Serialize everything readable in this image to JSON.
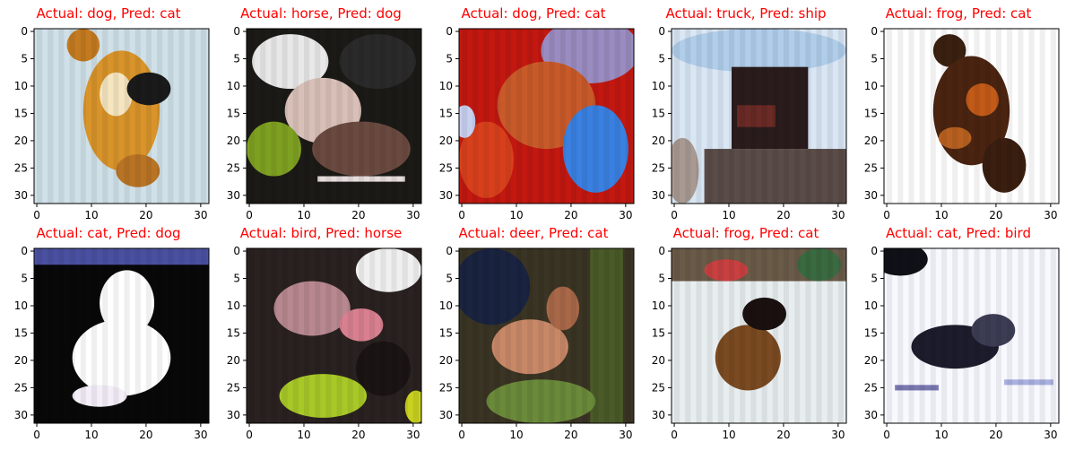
{
  "figure": {
    "panels": [
      {
        "title": "Actual: dog, Pred: cat",
        "bg": "#cfe0e8",
        "blobs": [
          {
            "shape": "ellipse",
            "cx": 16,
            "cy": 15,
            "rx": 7,
            "ry": 11,
            "color": "#d8942a"
          },
          {
            "shape": "ellipse",
            "cx": 15,
            "cy": 12,
            "rx": 3,
            "ry": 4,
            "color": "#f6e6c0"
          },
          {
            "shape": "ellipse",
            "cx": 9,
            "cy": 3,
            "rx": 3,
            "ry": 3,
            "color": "#c47a20"
          },
          {
            "shape": "ellipse",
            "cx": 21,
            "cy": 11,
            "rx": 4,
            "ry": 3,
            "color": "#1a1a1a"
          },
          {
            "shape": "ellipse",
            "cx": 19,
            "cy": 26,
            "rx": 4,
            "ry": 3,
            "color": "#b87424"
          }
        ]
      },
      {
        "title": "Actual: horse, Pred: dog",
        "bg": "#1c1a16",
        "blobs": [
          {
            "shape": "ellipse",
            "cx": 8,
            "cy": 6,
            "rx": 7,
            "ry": 5,
            "color": "#e8e8e8"
          },
          {
            "shape": "ellipse",
            "cx": 24,
            "cy": 6,
            "rx": 7,
            "ry": 5,
            "color": "#2a2a2a"
          },
          {
            "shape": "ellipse",
            "cx": 14,
            "cy": 15,
            "rx": 7,
            "ry": 6,
            "color": "#d8c0b8"
          },
          {
            "shape": "ellipse",
            "cx": 5,
            "cy": 22,
            "rx": 5,
            "ry": 5,
            "color": "#7ea022"
          },
          {
            "shape": "ellipse",
            "cx": 21,
            "cy": 22,
            "rx": 9,
            "ry": 5,
            "color": "#6a4a40"
          },
          {
            "shape": "rect",
            "x": 13,
            "y": 27,
            "w": 16,
            "h": 1,
            "color": "#e6dcdc"
          }
        ]
      },
      {
        "title": "Actual: dog, Pred: cat",
        "bg": "#c21810",
        "blobs": [
          {
            "shape": "ellipse",
            "cx": 24,
            "cy": 4,
            "rx": 9,
            "ry": 6,
            "color": "#9a8cc0"
          },
          {
            "shape": "ellipse",
            "cx": 16,
            "cy": 14,
            "rx": 9,
            "ry": 8,
            "color": "#c85a2a"
          },
          {
            "shape": "ellipse",
            "cx": 25,
            "cy": 22,
            "rx": 6,
            "ry": 8,
            "color": "#3a80e0"
          },
          {
            "shape": "ellipse",
            "cx": 5,
            "cy": 24,
            "rx": 5,
            "ry": 7,
            "color": "#d8401c"
          },
          {
            "shape": "ellipse",
            "cx": 1,
            "cy": 17,
            "rx": 2,
            "ry": 3,
            "color": "#c8d0f0"
          }
        ]
      },
      {
        "title": "Actual: truck, Pred: ship",
        "bg": "#d9e6f4",
        "blobs": [
          {
            "shape": "ellipse",
            "cx": 16,
            "cy": 4,
            "rx": 16,
            "ry": 4,
            "color": "#b0cdea"
          },
          {
            "shape": "rect",
            "x": 11,
            "y": 7,
            "w": 14,
            "h": 15,
            "color": "#2a1c1c"
          },
          {
            "shape": "rect",
            "x": 12,
            "y": 14,
            "w": 7,
            "h": 4,
            "color": "#6a2a26"
          },
          {
            "shape": "rect",
            "x": 6,
            "y": 22,
            "w": 26,
            "h": 10,
            "color": "#5a4c48"
          },
          {
            "shape": "ellipse",
            "cx": 2,
            "cy": 26,
            "rx": 3,
            "ry": 6,
            "color": "#a89a92"
          }
        ]
      },
      {
        "title": "Actual: frog, Pred: cat",
        "bg": "#ffffff",
        "blobs": [
          {
            "shape": "ellipse",
            "cx": 12,
            "cy": 4,
            "rx": 3,
            "ry": 3,
            "color": "#3a2010"
          },
          {
            "shape": "ellipse",
            "cx": 16,
            "cy": 15,
            "rx": 7,
            "ry": 10,
            "color": "#4a2410"
          },
          {
            "shape": "ellipse",
            "cx": 18,
            "cy": 13,
            "rx": 3,
            "ry": 3,
            "color": "#c25a18"
          },
          {
            "shape": "ellipse",
            "cx": 22,
            "cy": 25,
            "rx": 4,
            "ry": 5,
            "color": "#3a1e10"
          },
          {
            "shape": "ellipse",
            "cx": 13,
            "cy": 20,
            "rx": 3,
            "ry": 2,
            "color": "#b86020"
          }
        ]
      },
      {
        "title": "Actual: cat, Pred: dog",
        "bg": "#080808",
        "blobs": [
          {
            "shape": "rect",
            "x": 0,
            "y": 0,
            "w": 32,
            "h": 3,
            "color": "#4a50a0"
          },
          {
            "shape": "ellipse",
            "cx": 17,
            "cy": 10,
            "rx": 5,
            "ry": 6,
            "color": "#ffffff"
          },
          {
            "shape": "ellipse",
            "cx": 16,
            "cy": 20,
            "rx": 9,
            "ry": 7,
            "color": "#ffffff"
          },
          {
            "shape": "ellipse",
            "cx": 12,
            "cy": 27,
            "rx": 5,
            "ry": 2,
            "color": "#f4eef8"
          }
        ]
      },
      {
        "title": "Actual: bird, Pred: horse",
        "bg": "#2a2220",
        "blobs": [
          {
            "shape": "ellipse",
            "cx": 26,
            "cy": 4,
            "rx": 6,
            "ry": 4,
            "color": "#f0f0f0"
          },
          {
            "shape": "ellipse",
            "cx": 12,
            "cy": 11,
            "rx": 7,
            "ry": 5,
            "color": "#b88890"
          },
          {
            "shape": "ellipse",
            "cx": 21,
            "cy": 14,
            "rx": 4,
            "ry": 3,
            "color": "#d88090"
          },
          {
            "shape": "ellipse",
            "cx": 14,
            "cy": 27,
            "rx": 8,
            "ry": 4,
            "color": "#a8c828"
          },
          {
            "shape": "ellipse",
            "cx": 25,
            "cy": 22,
            "rx": 5,
            "ry": 5,
            "color": "#1a1414"
          },
          {
            "shape": "ellipse",
            "cx": 31,
            "cy": 29,
            "rx": 2,
            "ry": 3,
            "color": "#c8d020"
          }
        ]
      },
      {
        "title": "Actual: deer, Pred: cat",
        "bg": "#3a3424",
        "blobs": [
          {
            "shape": "ellipse",
            "cx": 6,
            "cy": 7,
            "rx": 7,
            "ry": 7,
            "color": "#1a2440"
          },
          {
            "shape": "rect",
            "x": 24,
            "y": 0,
            "w": 6,
            "h": 32,
            "color": "#4a5a28"
          },
          {
            "shape": "ellipse",
            "cx": 13,
            "cy": 18,
            "rx": 7,
            "ry": 5,
            "color": "#c88868"
          },
          {
            "shape": "ellipse",
            "cx": 19,
            "cy": 11,
            "rx": 3,
            "ry": 4,
            "color": "#a86848"
          },
          {
            "shape": "ellipse",
            "cx": 15,
            "cy": 28,
            "rx": 10,
            "ry": 4,
            "color": "#6a8a3a"
          }
        ]
      },
      {
        "title": "Actual: frog, Pred: cat",
        "bg": "#e8eef0",
        "blobs": [
          {
            "shape": "rect",
            "x": 0,
            "y": 0,
            "w": 32,
            "h": 6,
            "color": "#6a5a48"
          },
          {
            "shape": "ellipse",
            "cx": 10,
            "cy": 4,
            "rx": 4,
            "ry": 2,
            "color": "#c84040"
          },
          {
            "shape": "ellipse",
            "cx": 27,
            "cy": 3,
            "rx": 4,
            "ry": 3,
            "color": "#3a6a40"
          },
          {
            "shape": "ellipse",
            "cx": 14,
            "cy": 20,
            "rx": 6,
            "ry": 6,
            "color": "#7a4a22"
          },
          {
            "shape": "ellipse",
            "cx": 17,
            "cy": 12,
            "rx": 4,
            "ry": 3,
            "color": "#1a1010"
          }
        ]
      },
      {
        "title": "Actual: cat, Pred: bird",
        "bg": "#f8f8ff",
        "blobs": [
          {
            "shape": "ellipse",
            "cx": 3,
            "cy": 2,
            "rx": 5,
            "ry": 3,
            "color": "#101018"
          },
          {
            "shape": "ellipse",
            "cx": 13,
            "cy": 18,
            "rx": 8,
            "ry": 4,
            "color": "#1c1c2c"
          },
          {
            "shape": "ellipse",
            "cx": 20,
            "cy": 15,
            "rx": 4,
            "ry": 3,
            "color": "#3c3c54"
          },
          {
            "shape": "rect",
            "x": 2,
            "y": 25,
            "w": 8,
            "h": 1,
            "color": "#7a78b0"
          },
          {
            "shape": "rect",
            "x": 22,
            "y": 24,
            "w": 9,
            "h": 1,
            "color": "#aab0e0"
          }
        ]
      }
    ],
    "axis": {
      "x_ticks": [
        "0",
        "10",
        "20",
        "30"
      ],
      "y_ticks": [
        "0",
        "5",
        "10",
        "15",
        "20",
        "25",
        "30"
      ]
    }
  }
}
